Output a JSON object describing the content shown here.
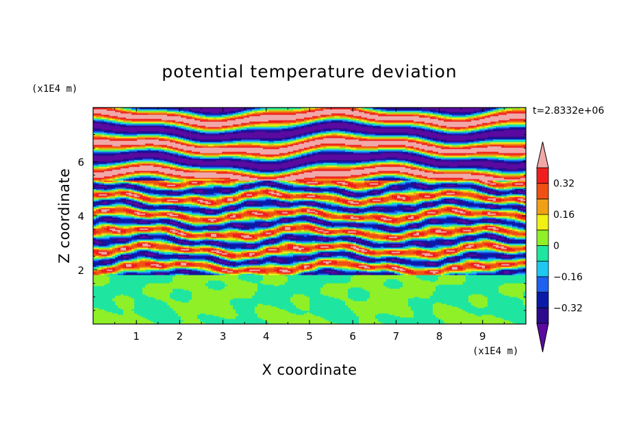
{
  "chart_data": {
    "type": "heatmap",
    "title": "potential temperature deviation",
    "time_label": "t=2.8332e+06",
    "xlabel": "X coordinate",
    "ylabel": "Z coordinate",
    "x_unit": "(x1E4 m)",
    "y_unit": "(x1E4 m)",
    "xlim": [
      0,
      10
    ],
    "ylim": [
      0,
      8
    ],
    "x_ticks": [
      "1",
      "2",
      "3",
      "4",
      "5",
      "6",
      "7",
      "8",
      "9"
    ],
    "y_ticks": [
      "2",
      "4",
      "6"
    ],
    "colorbar": {
      "levels": [
        -0.4,
        -0.32,
        -0.24,
        -0.16,
        -0.08,
        0,
        0.08,
        0.16,
        0.24,
        0.32,
        0.4
      ],
      "tick_labels": [
        "0.32",
        "0.16",
        "0",
        "-0.16",
        "-0.32"
      ],
      "colors_low_to_high": [
        "#2b0a8c",
        "#0a1aa8",
        "#1e60f0",
        "#1ec8f0",
        "#1ee6a0",
        "#8ff028",
        "#f0f014",
        "#f0a014",
        "#f05014",
        "#f01e1e"
      ],
      "under_color": "#5a0aa0",
      "over_color": "#f0a8a8"
    },
    "bands": [
      {
        "z_min": 0.0,
        "z_max": 1.8,
        "pattern": "mixed green",
        "dominant_values": [
          -0.04,
          0.04
        ]
      },
      {
        "z_min": 1.8,
        "z_max": 5.3,
        "pattern": "turbulent multicolour layers",
        "dominant_values": [
          -0.35,
          0.3
        ]
      },
      {
        "z_min": 5.3,
        "z_max": 8.0,
        "pattern": "alternating purple and pink layers",
        "dominant_values": [
          -0.45,
          0.45
        ]
      }
    ]
  }
}
